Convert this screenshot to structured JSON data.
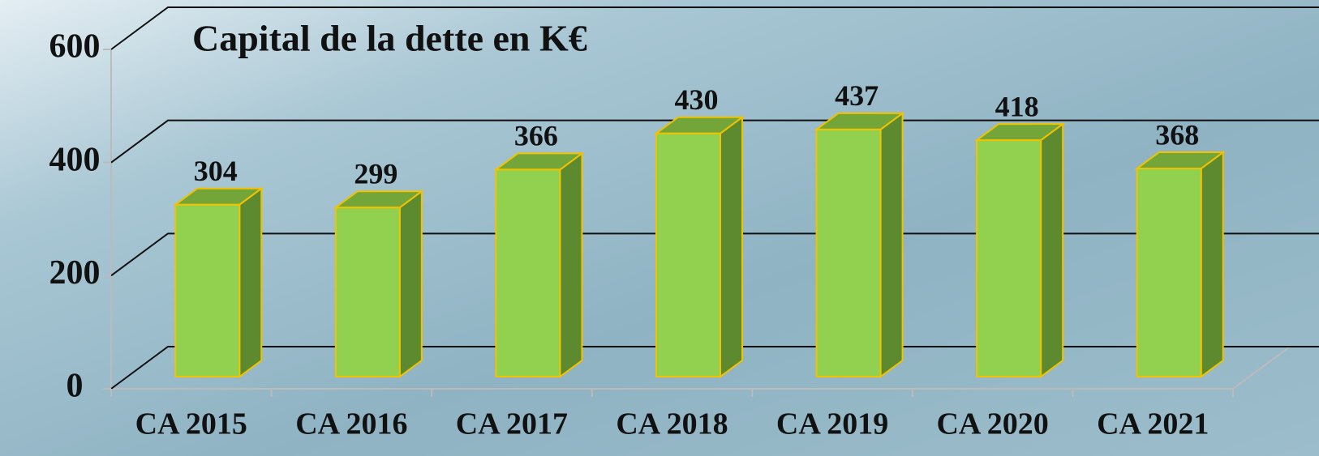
{
  "chart_data": {
    "type": "bar",
    "title": "Capital de la dette en K€",
    "categories": [
      "CA 2015",
      "CA 2016",
      "CA 2017",
      "CA 2018",
      "CA 2019",
      "CA 2020",
      "CA 2021"
    ],
    "values": [
      304,
      299,
      366,
      430,
      437,
      418,
      368
    ],
    "color": "#92d050",
    "ylim": [
      0,
      600
    ],
    "yticks": [
      0,
      200,
      400,
      600
    ],
    "grid": true
  }
}
